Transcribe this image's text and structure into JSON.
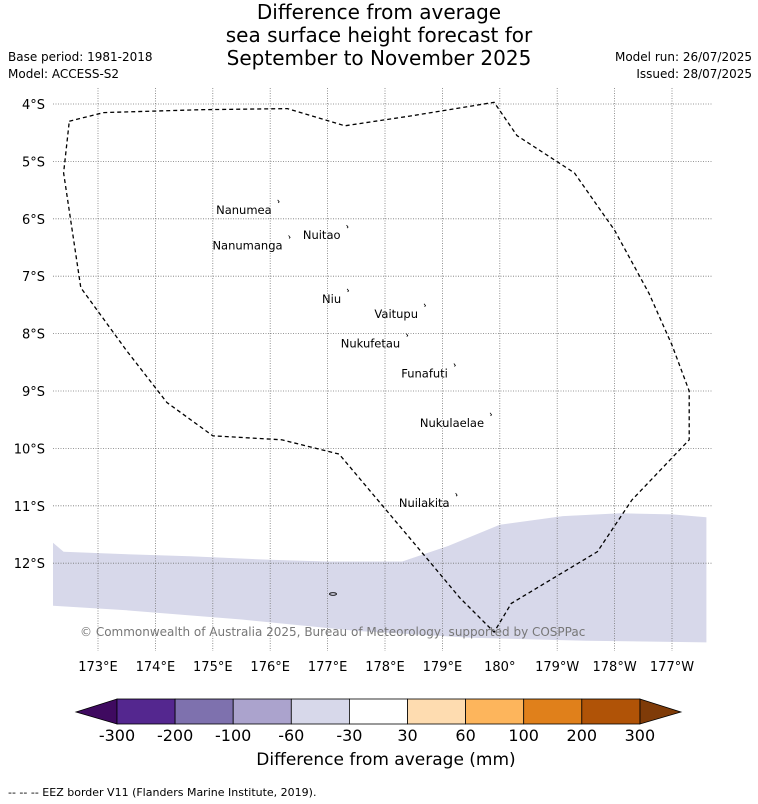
{
  "title_lines": [
    "Difference from average",
    "sea surface height forecast for",
    "September to November 2025"
  ],
  "meta_left": {
    "base_period": "Base period: 1981-2018",
    "model": "Model: ACCESS-S2"
  },
  "meta_right": {
    "model_run": "Model run: 26/07/2025",
    "issued": "Issued: 28/07/2025"
  },
  "map": {
    "lat_labels": [
      "4°S",
      "5°S",
      "6°S",
      "7°S",
      "8°S",
      "9°S",
      "10°S",
      "11°S",
      "12°S"
    ],
    "lon_labels": [
      "173°E",
      "174°E",
      "175°E",
      "176°E",
      "177°E",
      "178°E",
      "179°E",
      "180°",
      "179°W",
      "178°W",
      "177°W"
    ],
    "places": [
      {
        "name": "Nanumea",
        "lon": 176.13,
        "lat": -5.67
      },
      {
        "name": "Nuitao",
        "lon": 177.33,
        "lat": -6.11
      },
      {
        "name": "Nanumanga",
        "lon": 176.32,
        "lat": -6.29
      },
      {
        "name": "Niu",
        "lon": 177.34,
        "lat": -7.22
      },
      {
        "name": "Vaitupu",
        "lon": 178.68,
        "lat": -7.48
      },
      {
        "name": "Nukufetau",
        "lon": 178.37,
        "lat": -8.0
      },
      {
        "name": "Funafuti",
        "lon": 179.2,
        "lat": -8.52
      },
      {
        "name": "Nukulaelae",
        "lon": 179.83,
        "lat": -9.38
      },
      {
        "name": "Nuilakita",
        "lon": 179.23,
        "lat": -10.78
      }
    ],
    "eez_border": [
      [
        172.5,
        -4.3
      ],
      [
        173.1,
        -4.15
      ],
      [
        174.8,
        -4.1
      ],
      [
        176.3,
        -4.08
      ],
      [
        177.3,
        -4.38
      ],
      [
        178.5,
        -4.2
      ],
      [
        179.9,
        -3.97
      ],
      [
        180.3,
        -4.55
      ],
      [
        181.3,
        -5.2
      ],
      [
        182.0,
        -6.2
      ],
      [
        182.6,
        -7.3
      ],
      [
        183.0,
        -8.2
      ],
      [
        183.3,
        -9.0
      ],
      [
        183.3,
        -9.85
      ],
      [
        182.3,
        -10.9
      ],
      [
        181.7,
        -11.8
      ],
      [
        180.2,
        -12.7
      ],
      [
        179.9,
        -13.2
      ],
      [
        179.3,
        -12.6
      ],
      [
        178.8,
        -12.0
      ],
      [
        177.2,
        -10.1
      ],
      [
        176.2,
        -9.85
      ],
      [
        175.0,
        -9.78
      ],
      [
        174.2,
        -9.2
      ],
      [
        173.5,
        -8.3
      ],
      [
        172.7,
        -7.2
      ],
      [
        172.4,
        -5.2
      ],
      [
        172.5,
        -4.3
      ]
    ],
    "anomaly_region": {
      "category": "-30 to -60 mm",
      "color": "#d7d8ea",
      "top_boundary": [
        [
          172.2,
          -11.63
        ],
        [
          172.4,
          -11.8
        ],
        [
          173.4,
          -11.84
        ],
        [
          174.6,
          -11.88
        ],
        [
          176.0,
          -11.94
        ],
        [
          177.0,
          -11.97
        ],
        [
          178.3,
          -11.97
        ],
        [
          179.1,
          -11.7
        ],
        [
          180.0,
          -11.33
        ],
        [
          181.1,
          -11.18
        ],
        [
          182.1,
          -11.13
        ],
        [
          183.0,
          -11.15
        ],
        [
          183.6,
          -11.2
        ]
      ],
      "bottom_boundary": [
        [
          172.2,
          -12.74
        ],
        [
          173.5,
          -12.82
        ],
        [
          175.5,
          -12.98
        ],
        [
          177.5,
          -13.18
        ],
        [
          179.5,
          -13.3
        ],
        [
          181.5,
          -13.35
        ],
        [
          183.6,
          -13.38
        ]
      ]
    },
    "copyright": "© Commonwealth of Australia 2025, Bureau of Meteorology, supported by COSPPac"
  },
  "colorbar": {
    "boundaries": [
      "-300",
      "-200",
      "-100",
      "-60",
      "-30",
      "30",
      "60",
      "100",
      "200",
      "300"
    ],
    "colors": [
      "#54278f",
      "#7e71ae",
      "#aba3cd",
      "#d7d8ea",
      "#ffffff",
      "#fedcb0",
      "#fdb55c",
      "#e0801b",
      "#b05307"
    ],
    "extend_low_color": "#3f0a60",
    "extend_high_color": "#7f3b08",
    "title": "Difference from average (mm)"
  },
  "footer": "-- -- -- EEZ border V11 (Flanders Marine Institute, 2019)."
}
